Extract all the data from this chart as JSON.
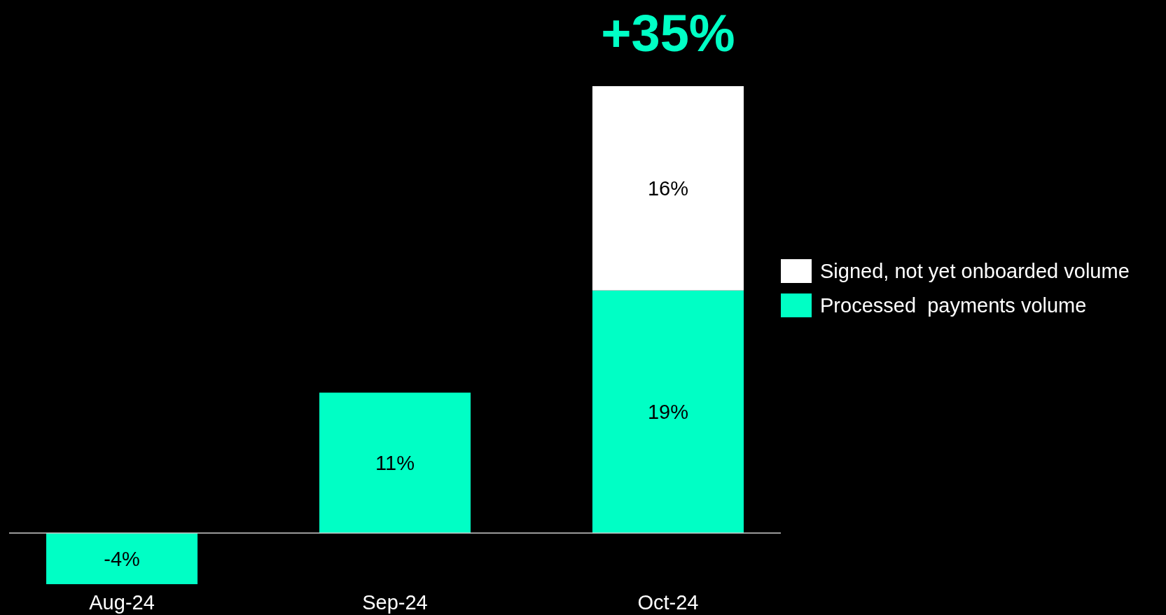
{
  "chart_data": {
    "type": "bar",
    "stacked": true,
    "categories": [
      "Aug-24",
      "Sep-24",
      "Oct-24"
    ],
    "series": [
      {
        "name": "Processed  payments volume",
        "color": "#00ffc5",
        "values": [
          -4,
          11,
          19
        ],
        "value_labels": [
          "-4%",
          "11%",
          "19%"
        ]
      },
      {
        "name": "Signed, not yet onboarded volume",
        "color": "#ffffff",
        "values": [
          null,
          null,
          16
        ],
        "value_labels": [
          null,
          null,
          "16%"
        ]
      }
    ],
    "totals": [
      null,
      null,
      "+35%"
    ],
    "legend": "right"
  }
}
